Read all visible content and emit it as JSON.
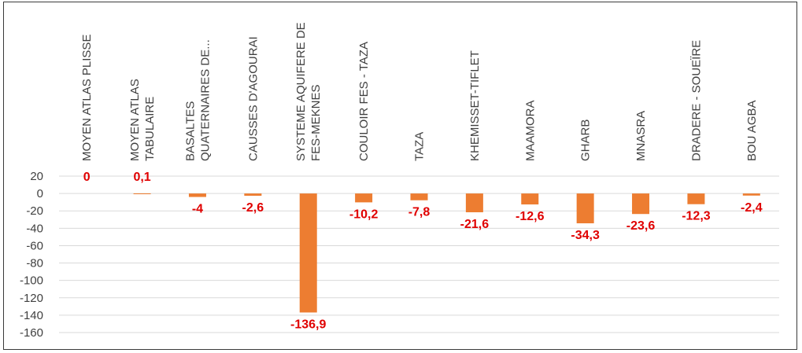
{
  "chart_data": {
    "type": "bar",
    "title": "",
    "xlabel": "",
    "ylabel": "",
    "ylim": [
      -160,
      20
    ],
    "yticks": [
      20,
      0,
      -20,
      -40,
      -60,
      -80,
      -100,
      -120,
      -140,
      -160
    ],
    "grid": true,
    "legend": "none",
    "bar_color": "#ED7D31",
    "label_color": "#E00000",
    "categories": [
      [
        "MOYEN ATLAS PLISSE"
      ],
      [
        "MOYEN ATLAS",
        "TABULAIRE"
      ],
      [
        "BASALTES",
        "QUATERNAIRES DE..."
      ],
      [
        "CAUSSES D'AGOURAI"
      ],
      [
        "SYSTEME AQUIFERE DE",
        "FES-MEKNES"
      ],
      [
        "COULOIR FES - TAZA"
      ],
      [
        "TAZA"
      ],
      [
        "KHEMISSET-TIFLET"
      ],
      [
        "MAAMORA"
      ],
      [
        "GHARB"
      ],
      [
        "MNASRA"
      ],
      [
        "DRADERE - SOUEÏRE"
      ],
      [
        "BOU AGBA"
      ]
    ],
    "values": [
      0,
      0.1,
      -4,
      -2.6,
      -136.9,
      -10.2,
      -7.8,
      -21.6,
      -12.6,
      -34.3,
      -23.6,
      -12.3,
      -2.4
    ],
    "data_labels": [
      "0",
      "0,1",
      "-4",
      "-2,6",
      "-136,9",
      "-10,2",
      "-7,8",
      "-21,6",
      "-12,6",
      "-34,3",
      "-23,6",
      "-12,3",
      "-2,4"
    ]
  }
}
